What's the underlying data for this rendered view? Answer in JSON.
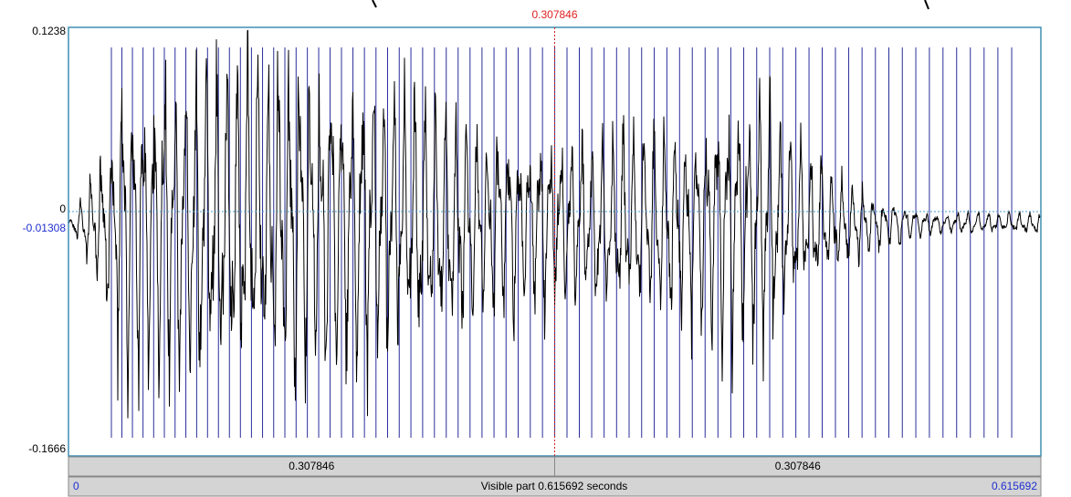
{
  "cursor": {
    "time": "0.307846"
  },
  "y_axis": {
    "top": "0.1238",
    "zero": "0",
    "cursor_value": "-0.01308",
    "bottom": "-0.1666"
  },
  "selection_bar": {
    "left": "0.307846",
    "right": "0.307846"
  },
  "time_bar": {
    "start": "0",
    "label": "Visible part 0.615692 seconds",
    "end": "0.615692"
  }
}
